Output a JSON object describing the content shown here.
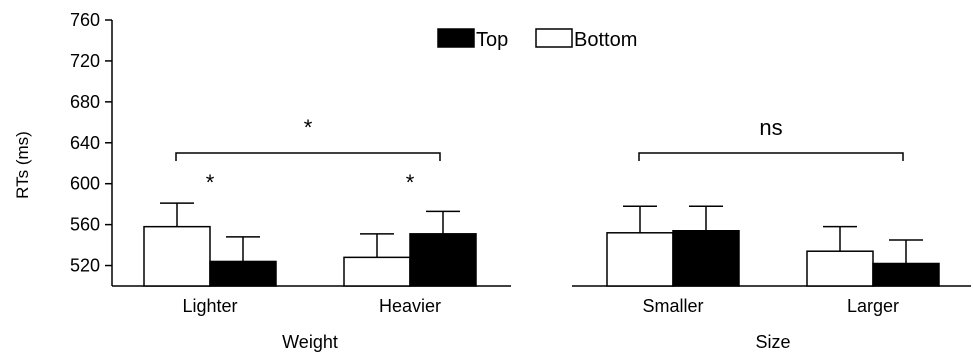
{
  "chart_data": {
    "type": "bar",
    "ylabel": "RTs (ms)",
    "ylim": [
      500,
      760
    ],
    "yticks": [
      520,
      560,
      600,
      640,
      680,
      720,
      760
    ],
    "grid": false,
    "legend": {
      "placement": "top-center",
      "entries": [
        {
          "label": "Top",
          "fill": "#000000"
        },
        {
          "label": "Bottom",
          "fill": "#ffffff"
        }
      ]
    },
    "series_style": {
      "Bottom": {
        "fill": "#ffffff",
        "stroke": "#000000"
      },
      "Top": {
        "fill": "#000000",
        "stroke": "#000000"
      }
    },
    "panels": [
      {
        "xlabel": "Weight",
        "categories": [
          "Lighter",
          "Heavier"
        ],
        "bars": [
          {
            "category": "Lighter",
            "series": "Bottom",
            "value": 558,
            "error": 23
          },
          {
            "category": "Lighter",
            "series": "Top",
            "value": 524,
            "error": 24
          },
          {
            "category": "Heavier",
            "series": "Bottom",
            "value": 528,
            "error": 23
          },
          {
            "category": "Heavier",
            "series": "Top",
            "value": 551,
            "error": 22
          }
        ],
        "within_significance": [
          "*",
          "*"
        ],
        "between_significance": "*"
      },
      {
        "xlabel": "Size",
        "categories": [
          "Smaller",
          "Larger"
        ],
        "bars": [
          {
            "category": "Smaller",
            "series": "Bottom",
            "value": 552,
            "error": 26
          },
          {
            "category": "Smaller",
            "series": "Top",
            "value": 554,
            "error": 24
          },
          {
            "category": "Larger",
            "series": "Bottom",
            "value": 534,
            "error": 24
          },
          {
            "category": "Larger",
            "series": "Top",
            "value": 522,
            "error": 23
          }
        ],
        "within_significance": [
          "",
          ""
        ],
        "between_significance": "ns"
      }
    ]
  }
}
